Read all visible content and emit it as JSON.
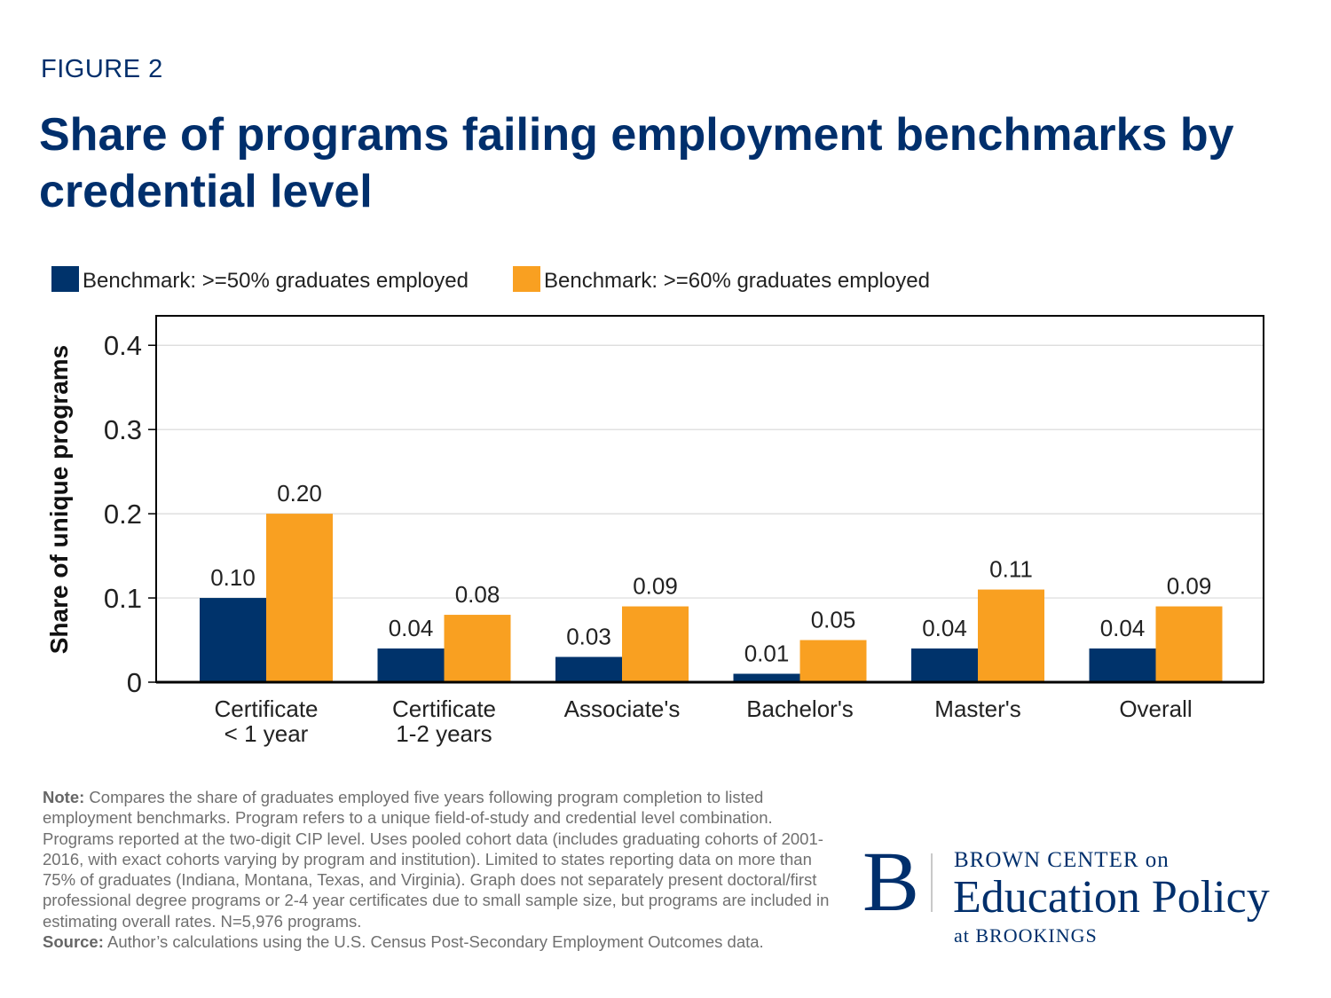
{
  "figure_label": "FIGURE 2",
  "title": "Share of programs failing employment benchmarks by credential level",
  "chart_data": {
    "type": "bar",
    "categories": [
      [
        "Certificate",
        "< 1 year"
      ],
      [
        "Certificate",
        "1-2 years"
      ],
      [
        "Associate's"
      ],
      [
        "Bachelor's"
      ],
      [
        "Master's"
      ],
      [
        "Overall"
      ]
    ],
    "series": [
      {
        "name": "Benchmark: >=50% graduates employed",
        "color": "#00336b",
        "values": [
          0.1,
          0.04,
          0.03,
          0.01,
          0.04,
          0.04
        ],
        "labels": [
          "0.10",
          "0.04",
          "0.03",
          "0.01",
          "0.04",
          "0.04"
        ]
      },
      {
        "name": "Benchmark: >=60% graduates employed",
        "color": "#f9a021",
        "values": [
          0.2,
          0.08,
          0.09,
          0.05,
          0.11,
          0.09
        ],
        "labels": [
          "0.20",
          "0.08",
          "0.09",
          "0.05",
          "0.11",
          "0.09"
        ]
      }
    ],
    "ylabel": "Share of unique programs",
    "yticks": [
      0,
      0.1,
      0.2,
      0.3,
      0.4
    ],
    "ytick_labels": [
      "0",
      "0.1",
      "0.2",
      "0.3",
      "0.4"
    ],
    "ylim": [
      0,
      0.435
    ],
    "grid": true,
    "legend": "top-left"
  },
  "notes": {
    "note_label": "Note:",
    "note_text": " Compares the share of graduates employed five years following program completion to listed employment benchmarks. Program refers to a unique field-of-study and credential level combination. Programs reported at the two-digit CIP level. Uses pooled cohort data (includes graduating cohorts of 2001-2016, with exact cohorts varying by program and institution). Limited to states reporting data on more than 75% of graduates (Indiana, Montana, Texas, and Virginia). Graph does not separately present doctoral/first professional degree programs or 2-4 year certificates due to small sample size, but programs are included in estimating overall rates. N=5,976 programs.",
    "source_label": "Source:",
    "source_text": " Author’s calculations using the U.S. Census Post-Secondary Employment Outcomes data."
  },
  "logo": {
    "letter": "B",
    "line1": "BROWN CENTER on",
    "line2": "Education Policy",
    "line3": "at BROOKINGS"
  }
}
